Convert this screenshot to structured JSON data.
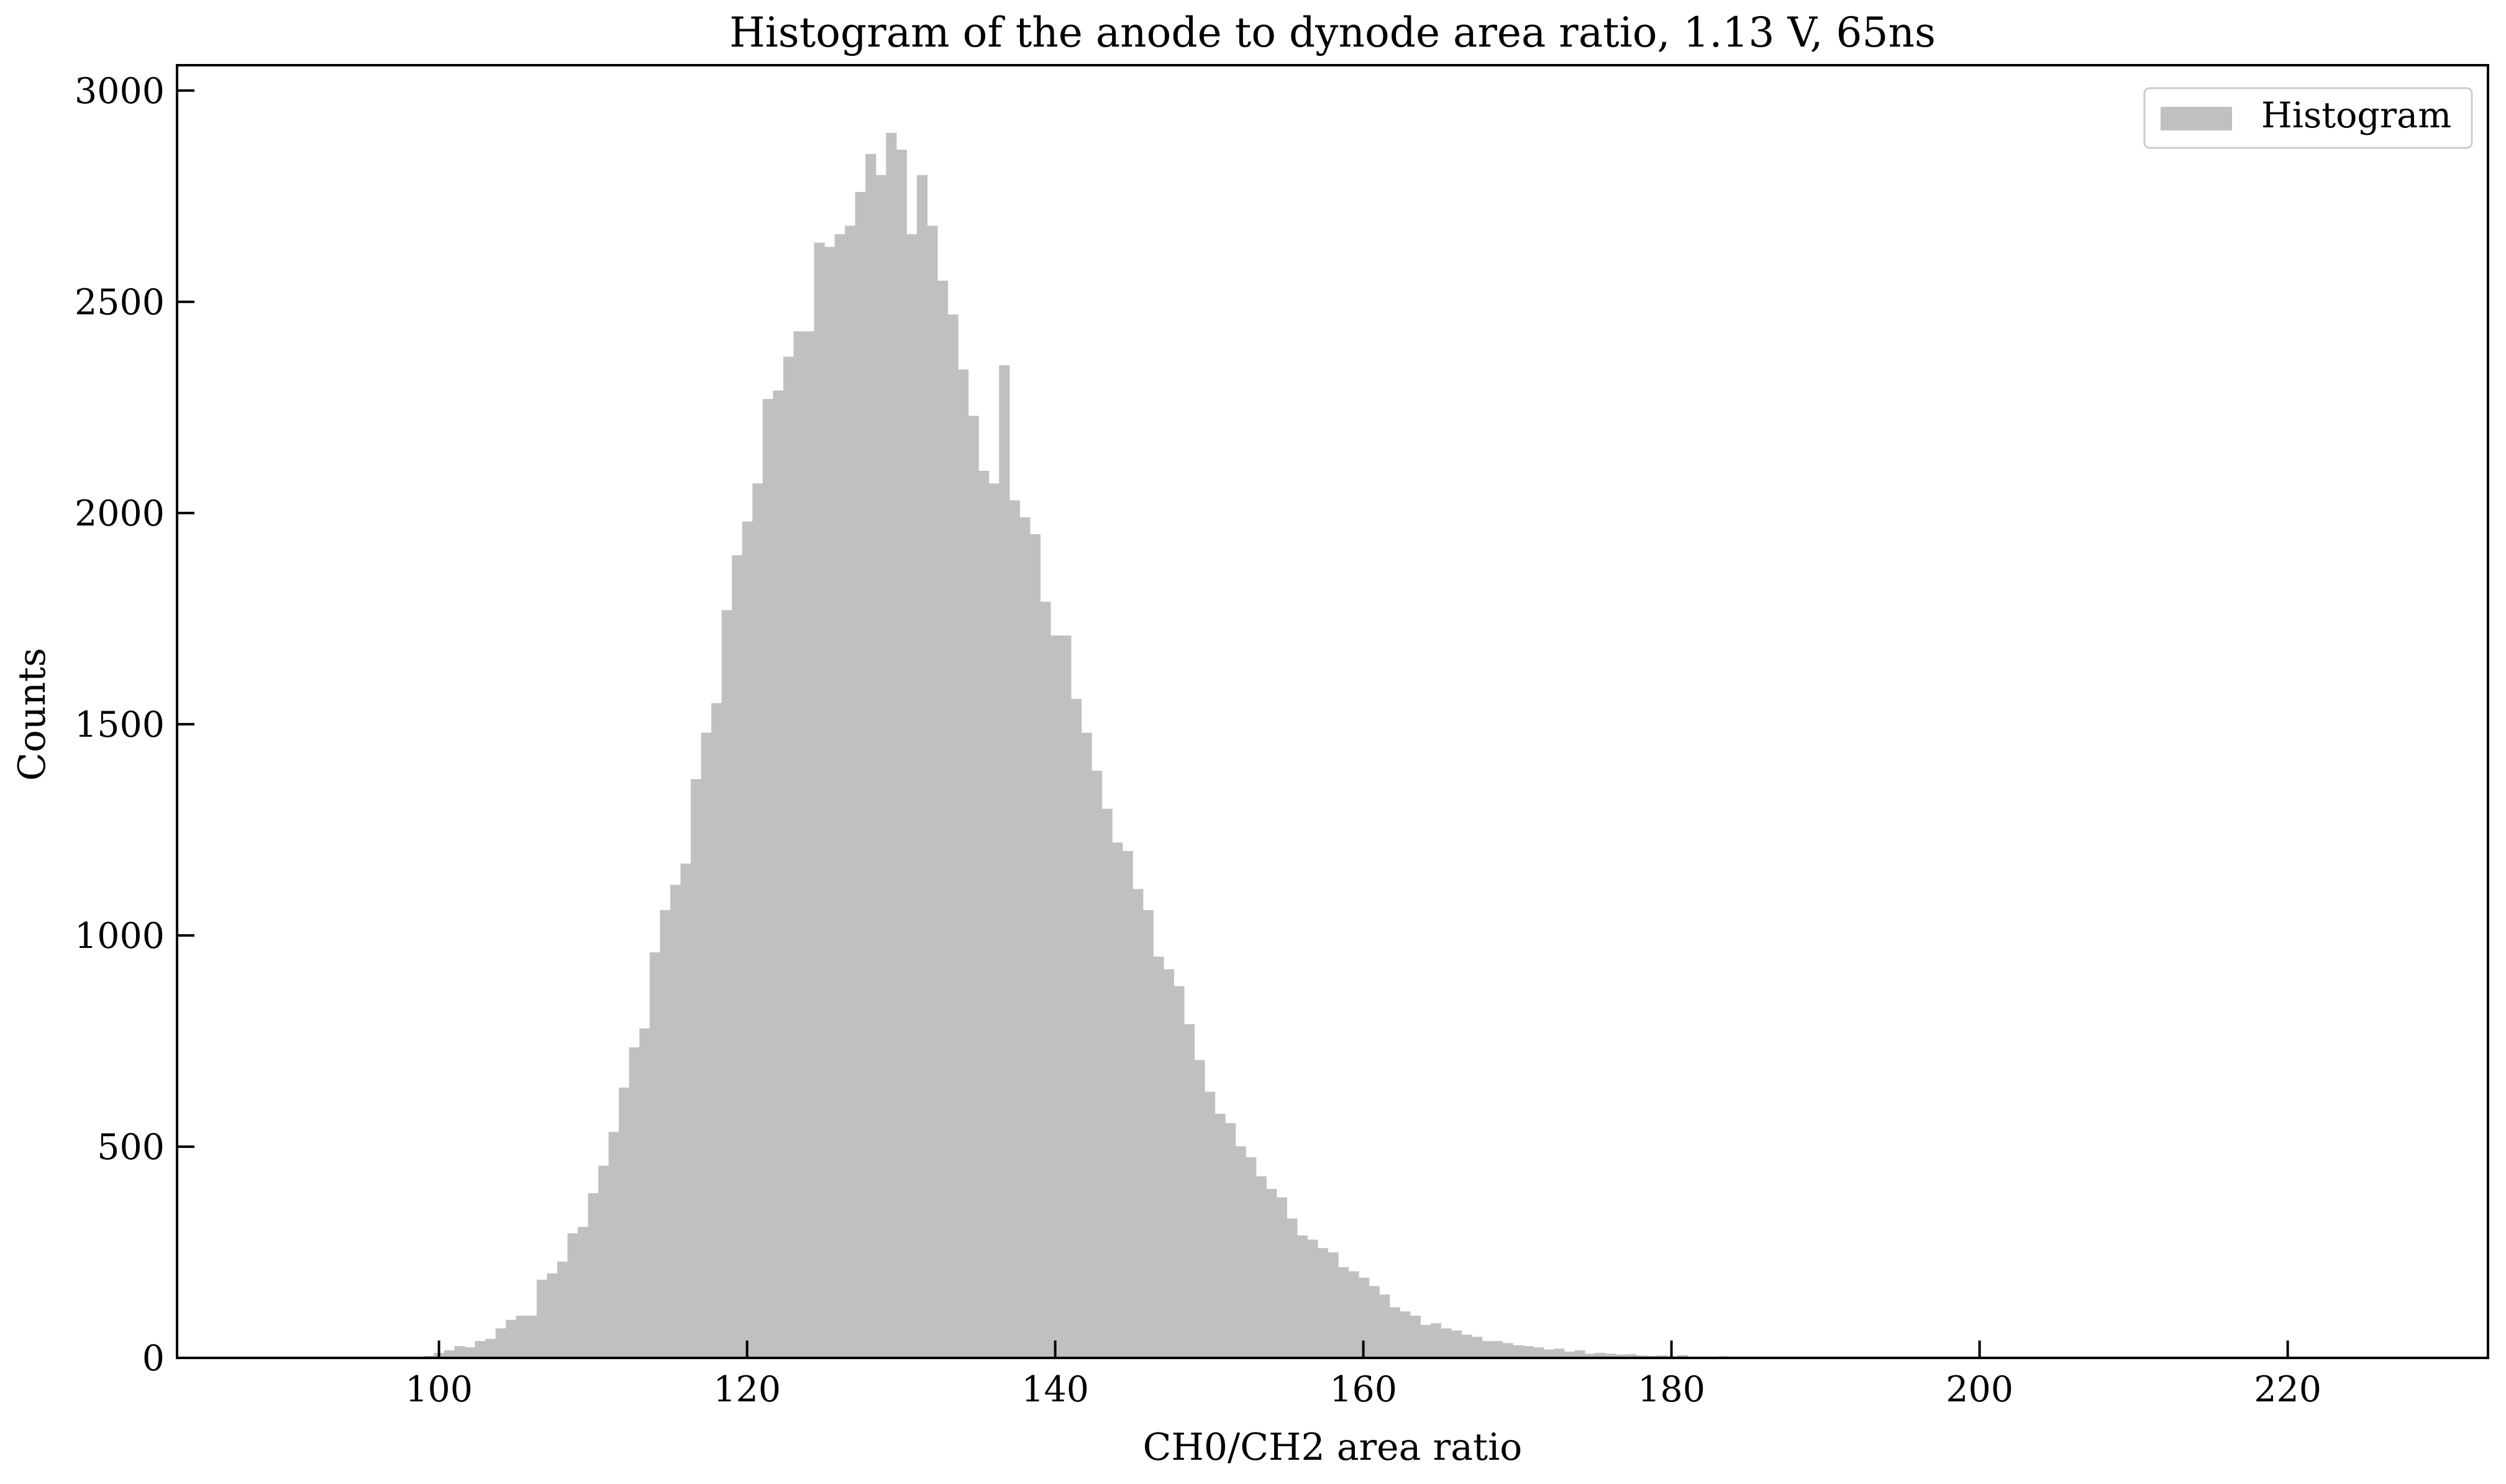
{
  "chart_data": {
    "type": "bar",
    "title": "Histogram of the anode to dynode area ratio, 1.13 V, 65ns",
    "xlabel": "CH0/CH2 area ratio",
    "ylabel": "Counts",
    "xlim": [
      83,
      233
    ],
    "ylim": [
      0,
      3060
    ],
    "xticks": [
      100,
      120,
      140,
      160,
      180,
      200,
      220
    ],
    "yticks": [
      0,
      500,
      1000,
      1500,
      2000,
      2500,
      3000
    ],
    "legend": {
      "entries": [
        "Histogram"
      ],
      "placement": "top-right"
    },
    "bar_color": "#c0c0c0",
    "grid": false,
    "bin_start": 93.0,
    "bin_width": 0.667,
    "values": [
      2,
      0,
      0,
      3,
      0,
      2,
      3,
      0,
      0,
      5,
      12,
      18,
      28,
      25,
      40,
      45,
      70,
      90,
      100,
      100,
      185,
      200,
      228,
      295,
      310,
      390,
      455,
      535,
      640,
      735,
      780,
      960,
      1060,
      1120,
      1170,
      1370,
      1480,
      1550,
      1770,
      1900,
      1980,
      2070,
      2270,
      2290,
      2370,
      2430,
      2430,
      2640,
      2630,
      2660,
      2680,
      2760,
      2850,
      2800,
      2900,
      2860,
      2660,
      2800,
      2680,
      2550,
      2470,
      2340,
      2230,
      2100,
      2070,
      2350,
      2030,
      1990,
      1950,
      1790,
      1710,
      1710,
      1560,
      1480,
      1390,
      1300,
      1220,
      1200,
      1110,
      1060,
      950,
      920,
      880,
      790,
      705,
      630,
      578,
      556,
      501,
      475,
      430,
      400,
      380,
      330,
      290,
      280,
      260,
      250,
      215,
      205,
      190,
      170,
      150,
      120,
      110,
      100,
      78,
      82,
      70,
      65,
      55,
      50,
      40,
      40,
      35,
      30,
      28,
      25,
      20,
      22,
      15,
      18,
      10,
      12,
      10,
      8,
      9,
      6,
      5,
      6,
      4,
      7,
      3,
      3,
      2,
      4,
      2,
      2,
      2,
      1,
      1,
      1,
      0,
      1,
      0,
      1,
      0,
      0,
      0,
      1,
      0,
      0,
      1,
      0,
      0,
      0,
      1,
      0,
      0,
      0,
      0,
      0,
      0,
      0,
      0,
      0,
      0,
      0,
      0,
      0,
      0,
      0,
      0,
      0,
      0,
      0,
      0,
      0,
      0,
      0,
      0,
      0,
      0,
      0,
      0,
      0,
      0,
      0
    ]
  }
}
